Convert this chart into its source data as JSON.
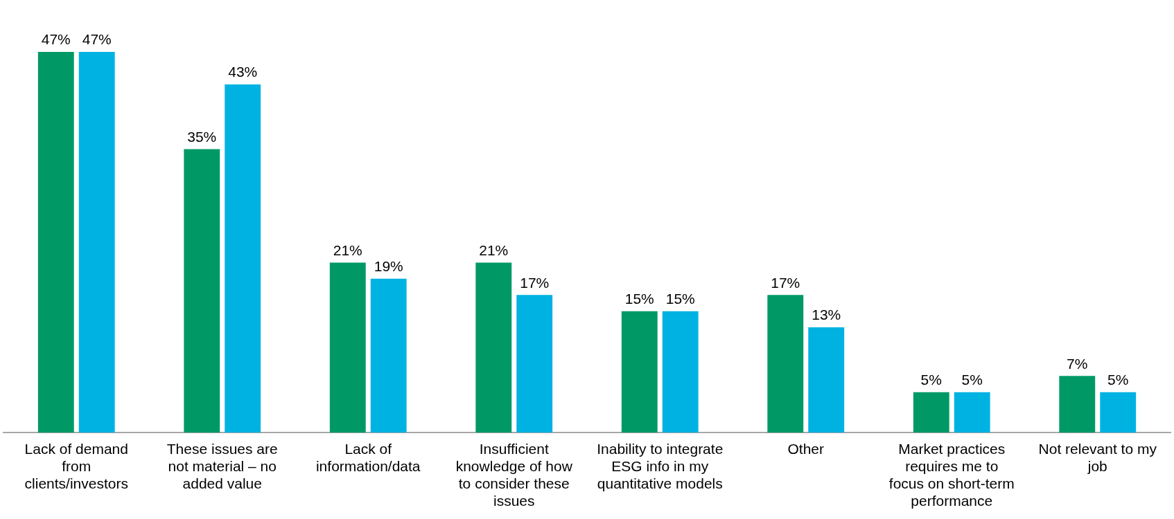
{
  "chart_data": {
    "type": "bar",
    "categories": [
      "Lack of demand from clients/investors",
      "These issues are not material – no added value",
      "Lack of information/data",
      "Insufficient knowledge of how to consider these issues",
      "Inability to integrate ESG info in my quantitative models",
      "Other",
      "Market practices requires me to focus on short-term performance",
      "Not relevant to my job"
    ],
    "series": [
      {
        "color": "#009966",
        "values": [
          47,
          35,
          21,
          21,
          15,
          17,
          5,
          7
        ],
        "value_labels": [
          "47%",
          "35%",
          "21%",
          "21%",
          "15%",
          "17%",
          "5%",
          "7%"
        ]
      },
      {
        "color": "#00b2e2",
        "values": [
          47,
          43,
          19,
          17,
          15,
          13,
          5,
          5
        ],
        "value_labels": [
          "47%",
          "43%",
          "19%",
          "17%",
          "15%",
          "13%",
          "5%",
          "5%"
        ]
      }
    ],
    "grid": false,
    "legend": false
  }
}
